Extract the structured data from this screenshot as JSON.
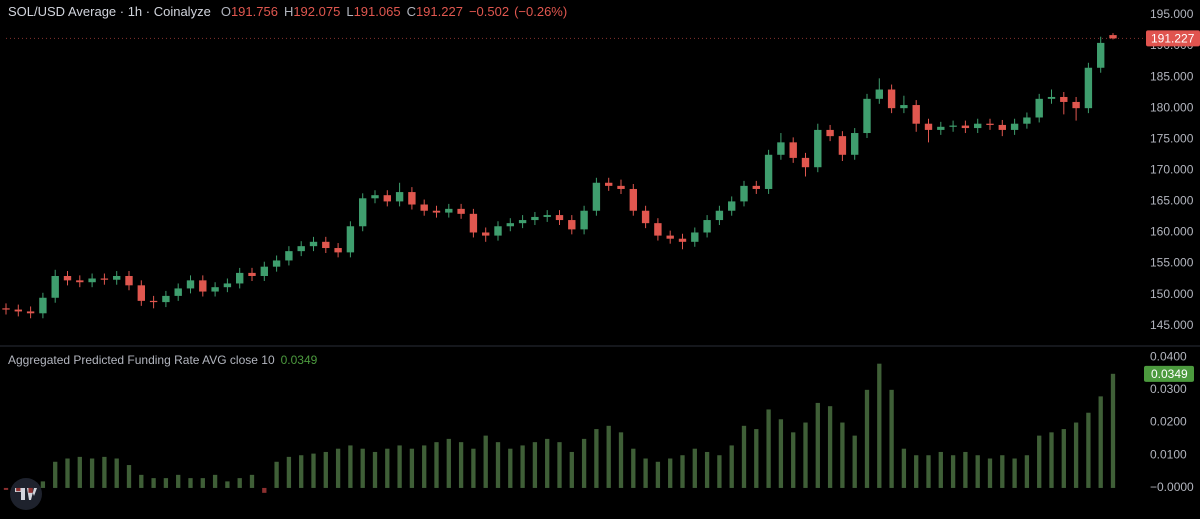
{
  "chart_data": [
    {
      "type": "candlestick",
      "title": "SOL/USD Average · 1h · Coinalyze",
      "ohlc_letters": [
        "O",
        "H",
        "L",
        "C"
      ],
      "change": {
        "value": -0.502,
        "label": "−0.502"
      },
      "change_percent": {
        "value": -0.26,
        "label": "(−0.26%)"
      },
      "up_color": "#3f9e6e",
      "down_color": "#e0574f",
      "last_color": "#e0544f",
      "ylim": [
        141.9,
        197.4
      ],
      "yticks": [
        {
          "value": 145,
          "label": "145.000"
        },
        {
          "value": 150,
          "label": "150.000"
        },
        {
          "value": 155,
          "label": "155.000"
        },
        {
          "value": 160,
          "label": "160.000"
        },
        {
          "value": 165,
          "label": "165.000"
        },
        {
          "value": 170,
          "label": "170.000"
        },
        {
          "value": 175,
          "label": "175.000"
        },
        {
          "value": 180,
          "label": "180.000"
        },
        {
          "value": 185,
          "label": "185.000"
        },
        {
          "value": 190,
          "label": "190.000"
        },
        {
          "value": 195,
          "label": "195.000"
        }
      ],
      "open": [
        147.8,
        147.6,
        147.3,
        147.0,
        149.5,
        153.0,
        152.3,
        152.0,
        152.6,
        152.4,
        153.0,
        151.5,
        149.0,
        148.8,
        149.8,
        151.0,
        152.3,
        150.5,
        151.2,
        151.8,
        153.5,
        153.0,
        154.5,
        155.5,
        157.0,
        157.8,
        158.5,
        157.5,
        156.8,
        161.0,
        165.5,
        166.0,
        165.0,
        166.5,
        164.5,
        163.5,
        163.2,
        163.8,
        163.0,
        160.0,
        159.5,
        161.0,
        161.5,
        162.0,
        162.5,
        162.8,
        162.0,
        160.5,
        163.5,
        168.0,
        167.5,
        167.0,
        163.5,
        161.5,
        159.5,
        159.0,
        158.5,
        160.0,
        162.0,
        163.5,
        165.0,
        167.5,
        167.0,
        172.5,
        174.5,
        172.0,
        170.5,
        176.5,
        175.5,
        172.5,
        176.0,
        181.5,
        183.0,
        180.0,
        180.5,
        177.5,
        176.5,
        177.0,
        177.2,
        176.8,
        177.5,
        177.3,
        176.5,
        177.5,
        178.5,
        181.5,
        181.8,
        181.0,
        180.0,
        186.5,
        191.756
      ],
      "high": [
        148.6,
        148.4,
        148.1,
        150.3,
        154.0,
        153.8,
        153.1,
        153.4,
        153.4,
        153.8,
        153.8,
        152.3,
        149.8,
        150.6,
        151.8,
        153.1,
        153.1,
        152.0,
        152.6,
        154.3,
        154.3,
        155.3,
        156.3,
        157.8,
        158.6,
        159.3,
        159.3,
        158.3,
        161.8,
        166.3,
        166.8,
        166.8,
        168.0,
        167.3,
        165.3,
        164.3,
        164.6,
        164.6,
        163.8,
        160.8,
        161.8,
        162.3,
        162.8,
        163.3,
        163.6,
        163.6,
        162.8,
        164.3,
        168.8,
        168.8,
        168.5,
        167.8,
        164.3,
        162.3,
        160.3,
        159.8,
        160.8,
        162.8,
        164.3,
        165.8,
        168.3,
        168.3,
        173.3,
        176.0,
        175.3,
        172.8,
        177.5,
        177.3,
        176.3,
        176.8,
        182.3,
        184.8,
        183.8,
        182.0,
        181.3,
        178.3,
        177.8,
        178.0,
        178.0,
        178.3,
        178.3,
        178.1,
        178.3,
        179.3,
        182.3,
        183.0,
        182.6,
        181.8,
        187.3,
        191.5,
        192.075
      ],
      "low": [
        146.8,
        146.5,
        146.2,
        146.2,
        148.7,
        151.5,
        151.2,
        151.2,
        151.6,
        151.6,
        150.7,
        148.2,
        147.8,
        148.0,
        149.0,
        150.2,
        149.7,
        149.7,
        150.4,
        151.0,
        152.2,
        152.2,
        153.7,
        154.7,
        156.2,
        157.0,
        156.7,
        156.0,
        156.0,
        160.2,
        164.7,
        164.2,
        164.2,
        163.7,
        162.7,
        162.4,
        162.4,
        162.2,
        159.2,
        158.5,
        158.7,
        160.2,
        160.7,
        161.2,
        161.7,
        161.2,
        159.7,
        159.7,
        162.7,
        166.7,
        166.2,
        162.7,
        160.7,
        158.7,
        158.2,
        157.3,
        157.7,
        159.2,
        161.2,
        162.7,
        164.2,
        166.2,
        166.2,
        171.7,
        171.2,
        169.0,
        169.7,
        174.7,
        171.5,
        171.7,
        175.2,
        180.7,
        179.2,
        179.2,
        176.2,
        174.5,
        175.7,
        176.2,
        176.0,
        176.0,
        176.5,
        175.5,
        175.7,
        176.7,
        177.7,
        180.7,
        179.0,
        178.0,
        179.2,
        185.7,
        191.065
      ],
      "close": [
        147.6,
        147.3,
        147.0,
        149.5,
        153.0,
        152.3,
        152.0,
        152.6,
        152.4,
        153.0,
        151.5,
        149.0,
        148.8,
        149.8,
        151.0,
        152.3,
        150.5,
        151.2,
        151.8,
        153.5,
        153.0,
        154.5,
        155.5,
        157.0,
        157.8,
        158.5,
        157.5,
        156.8,
        161.0,
        165.5,
        166.0,
        165.0,
        166.5,
        164.5,
        163.5,
        163.2,
        163.8,
        163.0,
        160.0,
        159.5,
        161.0,
        161.5,
        162.0,
        162.5,
        162.8,
        162.0,
        160.5,
        163.5,
        168.0,
        167.5,
        167.0,
        163.5,
        161.5,
        159.5,
        159.0,
        158.5,
        160.0,
        162.0,
        163.5,
        165.0,
        167.5,
        167.0,
        172.5,
        174.5,
        172.0,
        170.5,
        176.5,
        175.5,
        172.5,
        176.0,
        181.5,
        183.0,
        180.0,
        180.5,
        177.5,
        176.5,
        177.0,
        177.2,
        176.8,
        177.5,
        177.3,
        176.5,
        177.5,
        178.5,
        181.5,
        181.8,
        181.0,
        180.0,
        186.5,
        190.5,
        191.227
      ]
    },
    {
      "type": "bar",
      "title": "Aggregated Predicted Funding Rate AVG close 10",
      "color": "#3f5f37",
      "negative_color": "#8c3030",
      "last_color": "#4c9a3e",
      "ylim": [
        -0.0095,
        0.0431
      ],
      "yticks": [
        {
          "value": 0,
          "label": "−0.0000"
        },
        {
          "value": 0.01,
          "label": "0.0100"
        },
        {
          "value": 0.02,
          "label": "0.0200"
        },
        {
          "value": 0.03,
          "label": "0.0300"
        },
        {
          "value": 0.04,
          "label": "0.0400"
        }
      ],
      "values": [
        -0.0006,
        -0.001,
        -0.0015,
        0.002,
        0.008,
        0.009,
        0.0095,
        0.009,
        0.0095,
        0.009,
        0.007,
        0.004,
        0.003,
        0.003,
        0.004,
        0.003,
        0.003,
        0.004,
        0.002,
        0.003,
        0.004,
        -0.0015,
        0.008,
        0.0095,
        0.01,
        0.0105,
        0.011,
        0.012,
        0.013,
        0.012,
        0.011,
        0.012,
        0.013,
        0.012,
        0.013,
        0.014,
        0.015,
        0.014,
        0.012,
        0.016,
        0.014,
        0.012,
        0.013,
        0.014,
        0.015,
        0.014,
        0.011,
        0.015,
        0.018,
        0.019,
        0.017,
        0.012,
        0.009,
        0.008,
        0.009,
        0.01,
        0.012,
        0.011,
        0.01,
        0.013,
        0.019,
        0.018,
        0.024,
        0.021,
        0.017,
        0.02,
        0.026,
        0.025,
        0.02,
        0.016,
        0.03,
        0.038,
        0.03,
        0.012,
        0.01,
        0.01,
        0.011,
        0.01,
        0.011,
        0.01,
        0.009,
        0.01,
        0.009,
        0.01,
        0.016,
        0.017,
        0.018,
        0.02,
        0.023,
        0.028,
        0.0349
      ]
    }
  ]
}
